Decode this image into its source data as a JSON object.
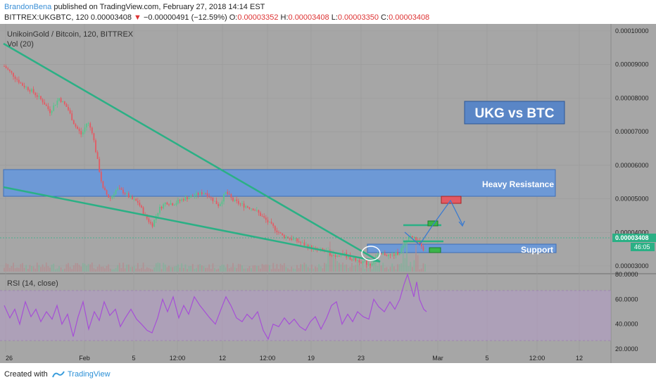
{
  "header": {
    "author": "BrandonBena",
    "published_text": " published on TradingView.com, February 27, 2018 14:14 EST",
    "symbol_line_prefix": "BITTREX:UKGBTC, 120  0.00003408 ",
    "change_arrow": "▼",
    "change_text": " −0.00000491 (−12.59%)",
    "o_label": " O:",
    "o_value": "0.00003352",
    "h_label": " H:",
    "h_value": "0.00003408",
    "l_label": " L:",
    "l_value": "0.00003350",
    "c_label": " C:",
    "c_value": "0.00003408"
  },
  "chart_title": "UnikoinGold / Bitcoin, 120, BITTREX",
  "vol_label": "Vol (20)",
  "ukg_label": "UKG vs BTC",
  "heavy_resistance_label": "Heavy Resistance",
  "support_label": "Support",
  "rsi_label": "RSI (14, close)",
  "price_axis": [
    "0.00010000",
    "0.00009000",
    "0.00008000",
    "0.00007000",
    "0.00006000",
    "0.00005000",
    "0.00004000",
    "0.00003000"
  ],
  "current_price": "0.00003408",
  "countdown": "46:05",
  "rsi_axis": [
    "80.0000",
    "60.0000",
    "40.0000",
    "20.0000"
  ],
  "time_axis": [
    "26",
    "Feb",
    "5",
    "12:00",
    "12",
    "12:00",
    "19",
    "23",
    "Mar",
    "5",
    "12:00",
    "12"
  ],
  "footer": {
    "created_with": "Created with",
    "brand": "TradingView"
  },
  "colors": {
    "background": "#a6a6a6",
    "up": "#57c48c",
    "down": "#e35a63",
    "trendline": "#2bb085",
    "zone_fill": "#6d99d6",
    "rsi_line": "#a64fd6",
    "rsi_band": "#b39ac7"
  },
  "chart_data": {
    "type": "candlestick",
    "title": "UnikoinGold / Bitcoin, 120, BITTREX",
    "ylim": [
      3e-05,
      0.0001
    ],
    "rsi_ylim": [
      20,
      80
    ],
    "price_path": [
      [
        0,
        8.95e-05
      ],
      [
        12,
        8.7e-05
      ],
      [
        25,
        8.4e-05
      ],
      [
        40,
        8.2e-05
      ],
      [
        55,
        7.9e-05
      ],
      [
        65,
        7.6e-05
      ],
      [
        78,
        8e-05
      ],
      [
        90,
        7.7e-05
      ],
      [
        100,
        7.2e-05
      ],
      [
        110,
        6.9e-05
      ],
      [
        118,
        7.3e-05
      ],
      [
        125,
        7e-05
      ],
      [
        132,
        6.2e-05
      ],
      [
        140,
        5.3e-05
      ],
      [
        150,
        5e-05
      ],
      [
        160,
        5.3e-05
      ],
      [
        170,
        5.2e-05
      ],
      [
        180,
        5e-05
      ],
      [
        190,
        4.9e-05
      ],
      [
        200,
        4.5e-05
      ],
      [
        210,
        4.2e-05
      ],
      [
        220,
        4.7e-05
      ],
      [
        230,
        4.9e-05
      ],
      [
        240,
        4.85e-05
      ],
      [
        255,
        5e-05
      ],
      [
        270,
        5.1e-05
      ],
      [
        285,
        5.2e-05
      ],
      [
        295,
        5e-05
      ],
      [
        305,
        4.8e-05
      ],
      [
        315,
        5.2e-05
      ],
      [
        325,
        4.95e-05
      ],
      [
        340,
        4.8e-05
      ],
      [
        355,
        4.7e-05
      ],
      [
        365,
        4.5e-05
      ],
      [
        375,
        4.3e-05
      ],
      [
        385,
        4.1e-05
      ],
      [
        395,
        3.9e-05
      ],
      [
        410,
        3.8e-05
      ],
      [
        425,
        3.65e-05
      ],
      [
        440,
        3.5e-05
      ],
      [
        455,
        3.45e-05
      ],
      [
        470,
        3.3e-05
      ],
      [
        480,
        3.4e-05
      ],
      [
        490,
        3.25e-05
      ],
      [
        500,
        3.18e-05
      ],
      [
        510,
        3.12e-05
      ],
      [
        520,
        3.05e-05
      ],
      [
        530,
        3.3e-05
      ],
      [
        540,
        3.35e-05
      ],
      [
        550,
        3.3e-05
      ],
      [
        560,
        3.4e-05
      ],
      [
        568,
        3.6e-05
      ],
      [
        575,
        3.9e-05
      ],
      [
        585,
        3.8e-05
      ],
      [
        592,
        3.55e-05
      ],
      [
        600,
        3.41e-05
      ]
    ],
    "rsi_path": [
      [
        0,
        55
      ],
      [
        8,
        45
      ],
      [
        15,
        52
      ],
      [
        22,
        40
      ],
      [
        30,
        58
      ],
      [
        38,
        46
      ],
      [
        45,
        52
      ],
      [
        52,
        42
      ],
      [
        60,
        50
      ],
      [
        68,
        44
      ],
      [
        75,
        55
      ],
      [
        82,
        40
      ],
      [
        90,
        48
      ],
      [
        98,
        30
      ],
      [
        105,
        46
      ],
      [
        112,
        58
      ],
      [
        120,
        36
      ],
      [
        128,
        50
      ],
      [
        135,
        43
      ],
      [
        142,
        58
      ],
      [
        150,
        47
      ],
      [
        158,
        52
      ],
      [
        165,
        38
      ],
      [
        172,
        45
      ],
      [
        180,
        52
      ],
      [
        188,
        44
      ],
      [
        195,
        40
      ],
      [
        203,
        35
      ],
      [
        210,
        33
      ],
      [
        218,
        45
      ],
      [
        225,
        60
      ],
      [
        232,
        50
      ],
      [
        240,
        62
      ],
      [
        248,
        45
      ],
      [
        255,
        55
      ],
      [
        262,
        48
      ],
      [
        270,
        62
      ],
      [
        278,
        55
      ],
      [
        285,
        50
      ],
      [
        292,
        45
      ],
      [
        300,
        40
      ],
      [
        308,
        52
      ],
      [
        315,
        62
      ],
      [
        322,
        55
      ],
      [
        330,
        45
      ],
      [
        338,
        42
      ],
      [
        345,
        48
      ],
      [
        352,
        44
      ],
      [
        360,
        50
      ],
      [
        368,
        35
      ],
      [
        375,
        28
      ],
      [
        382,
        40
      ],
      [
        390,
        38
      ],
      [
        398,
        45
      ],
      [
        405,
        40
      ],
      [
        412,
        44
      ],
      [
        420,
        38
      ],
      [
        428,
        35
      ],
      [
        435,
        42
      ],
      [
        442,
        46
      ],
      [
        450,
        36
      ],
      [
        458,
        45
      ],
      [
        465,
        55
      ],
      [
        472,
        58
      ],
      [
        480,
        40
      ],
      [
        488,
        48
      ],
      [
        495,
        42
      ],
      [
        502,
        50
      ],
      [
        510,
        46
      ],
      [
        518,
        44
      ],
      [
        525,
        60
      ],
      [
        532,
        54
      ],
      [
        540,
        50
      ],
      [
        548,
        58
      ],
      [
        555,
        52
      ],
      [
        562,
        60
      ],
      [
        568,
        72
      ],
      [
        573,
        80
      ],
      [
        578,
        70
      ],
      [
        582,
        62
      ],
      [
        586,
        74
      ],
      [
        590,
        60
      ],
      [
        596,
        52
      ],
      [
        600,
        50
      ]
    ]
  }
}
